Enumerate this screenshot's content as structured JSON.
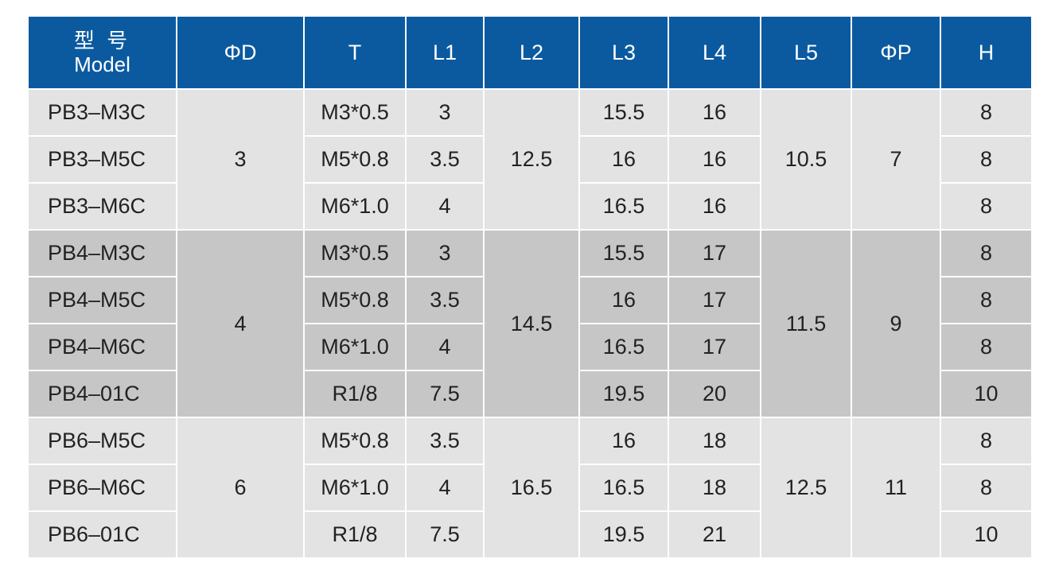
{
  "headers": {
    "model_zh": "型 号",
    "model_en": "Model",
    "d": "ΦD",
    "t": "T",
    "l1": "L1",
    "l2": "L2",
    "l3": "L3",
    "l4": "L4",
    "l5": "L5",
    "p": "ΦP",
    "h": "H"
  },
  "groups": [
    {
      "d": "3",
      "l2": "12.5",
      "l5": "10.5",
      "p": "7",
      "rows": [
        {
          "model": "PB3–M3C",
          "t": "M3*0.5",
          "l1": "3",
          "l3": "15.5",
          "l4": "16",
          "h": "8"
        },
        {
          "model": "PB3–M5C",
          "t": "M5*0.8",
          "l1": "3.5",
          "l3": "16",
          "l4": "16",
          "h": "8"
        },
        {
          "model": "PB3–M6C",
          "t": "M6*1.0",
          "l1": "4",
          "l3": "16.5",
          "l4": "16",
          "h": "8"
        }
      ]
    },
    {
      "d": "4",
      "l2": "14.5",
      "l5": "11.5",
      "p": "9",
      "rows": [
        {
          "model": "PB4–M3C",
          "t": "M3*0.5",
          "l1": "3",
          "l3": "15.5",
          "l4": "17",
          "h": "8"
        },
        {
          "model": "PB4–M5C",
          "t": "M5*0.8",
          "l1": "3.5",
          "l3": "16",
          "l4": "17",
          "h": "8"
        },
        {
          "model": "PB4–M6C",
          "t": "M6*1.0",
          "l1": "4",
          "l3": "16.5",
          "l4": "17",
          "h": "8"
        },
        {
          "model": "PB4–01C",
          "t": "R1/8",
          "l1": "7.5",
          "l3": "19.5",
          "l4": "20",
          "h": "10"
        }
      ]
    },
    {
      "d": "6",
      "l2": "16.5",
      "l5": "12.5",
      "p": "11",
      "rows": [
        {
          "model": "PB6–M5C",
          "t": "M5*0.8",
          "l1": "3.5",
          "l3": "16",
          "l4": "18",
          "h": "8"
        },
        {
          "model": "PB6–M6C",
          "t": "M6*1.0",
          "l1": "4",
          "l3": "16.5",
          "l4": "18",
          "h": "8"
        },
        {
          "model": "PB6–01C",
          "t": "R1/8",
          "l1": "7.5",
          "l3": "19.5",
          "l4": "21",
          "h": "10"
        }
      ]
    }
  ],
  "colors": {
    "header_bg": "#0b5aa0",
    "group_light": "#e3e3e3",
    "group_dark": "#c6c6c6"
  }
}
